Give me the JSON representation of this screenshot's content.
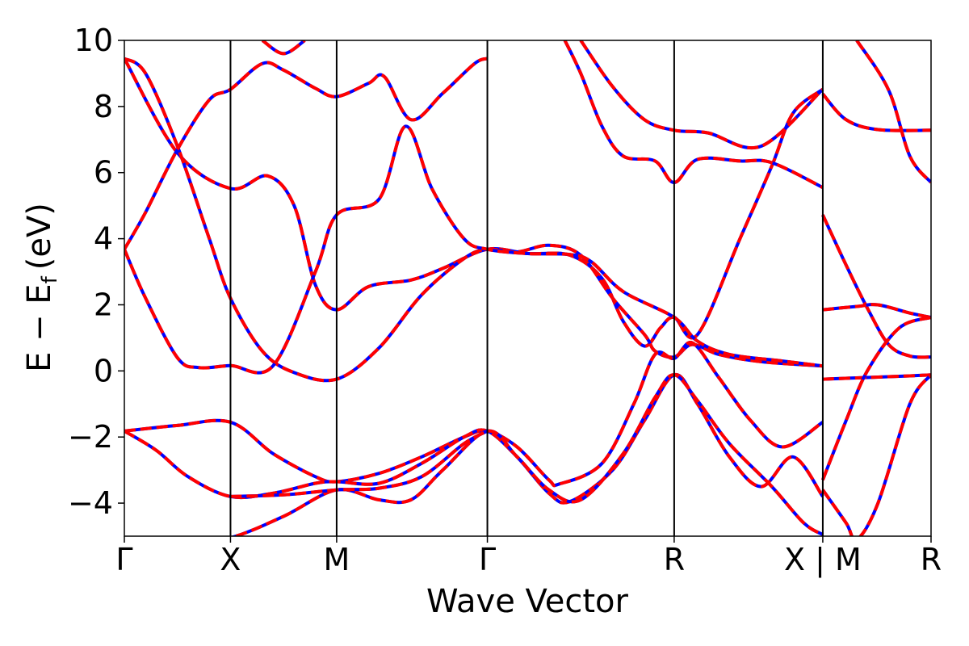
{
  "chart_data": {
    "type": "line",
    "xlabel": "Wave Vector",
    "ylabel": "E − E",
    "ylabel_subscript": "f",
    "ylabel_unit": "(eV)",
    "ylim": [
      -5,
      10
    ],
    "y_ticks": [
      -4,
      -2,
      0,
      2,
      4,
      6,
      8,
      10
    ],
    "xlim": [
      0,
      7.6
    ],
    "high_symmetry_points": [
      {
        "label": "Γ",
        "x": 0
      },
      {
        "label": "X",
        "x": 1.0
      },
      {
        "label": "M",
        "x": 2.0
      },
      {
        "label": "Γ",
        "x": 3.42
      },
      {
        "label": "R",
        "x": 5.18
      },
      {
        "label": "X",
        "x": 6.58
      },
      {
        "label": "M",
        "x": 6.58
      },
      {
        "label": "R",
        "x": 7.6
      }
    ],
    "kpath_break_label": "X | M",
    "grid": false,
    "series_styles": [
      {
        "color": "#0000ff",
        "style": "solid"
      },
      {
        "color": "#ff0000",
        "style": "dashed"
      }
    ],
    "bands": [
      [
        [
          0,
          9.45
        ],
        [
          0.5,
          6.6
        ],
        [
          1.0,
          5.52
        ],
        [
          1.35,
          5.9
        ],
        [
          1.6,
          5.0
        ],
        [
          1.8,
          2.6
        ],
        [
          2.0,
          1.85
        ],
        [
          2.3,
          2.55
        ],
        [
          2.7,
          2.75
        ],
        [
          3.0,
          3.1
        ],
        [
          3.42,
          3.68
        ],
        [
          3.8,
          3.55
        ],
        [
          4.2,
          3.5
        ],
        [
          4.5,
          2.8
        ],
        [
          4.7,
          1.5
        ],
        [
          4.9,
          0.75
        ],
        [
          5.05,
          1.3
        ],
        [
          5.18,
          1.62
        ],
        [
          5.4,
          1.1
        ],
        [
          5.8,
          4.0
        ],
        [
          6.1,
          6.2
        ],
        [
          6.3,
          7.8
        ],
        [
          6.58,
          8.52
        ]
      ],
      [
        [
          0,
          9.45
        ],
        [
          0.2,
          9.0
        ],
        [
          0.5,
          6.8
        ],
        [
          0.8,
          4.0
        ],
        [
          1.0,
          2.2
        ],
        [
          1.3,
          0.6
        ],
        [
          1.6,
          -0.05
        ],
        [
          2.0,
          -0.25
        ],
        [
          2.4,
          0.7
        ],
        [
          2.8,
          2.3
        ],
        [
          3.2,
          3.4
        ],
        [
          3.42,
          3.68
        ],
        [
          3.7,
          3.6
        ],
        [
          4.0,
          3.8
        ],
        [
          4.3,
          3.5
        ],
        [
          4.6,
          2.2
        ],
        [
          4.9,
          1.1
        ],
        [
          5.0,
          0.6
        ],
        [
          5.18,
          0.42
        ],
        [
          5.35,
          0.8
        ],
        [
          5.6,
          0.5
        ],
        [
          6.0,
          0.28
        ],
        [
          6.58,
          0.15
        ]
      ],
      [
        [
          0,
          3.68
        ],
        [
          0.2,
          4.8
        ],
        [
          0.5,
          6.7
        ],
        [
          0.8,
          8.2
        ],
        [
          1.0,
          8.52
        ],
        [
          1.3,
          9.3
        ],
        [
          1.5,
          9.1
        ],
        [
          1.8,
          8.55
        ],
        [
          2.0,
          8.3
        ],
        [
          2.3,
          8.7
        ],
        [
          2.45,
          8.9
        ],
        [
          2.7,
          7.6
        ],
        [
          3.0,
          8.4
        ],
        [
          3.3,
          9.3
        ],
        [
          3.42,
          9.45
        ]
      ],
      [
        [
          0,
          3.68
        ],
        [
          0.2,
          2.2
        ],
        [
          0.5,
          0.4
        ],
        [
          0.7,
          0.1
        ],
        [
          1.0,
          0.16
        ],
        [
          1.4,
          0.15
        ],
        [
          1.8,
          3.0
        ],
        [
          2.0,
          4.72
        ],
        [
          2.4,
          5.2
        ],
        [
          2.65,
          7.4
        ],
        [
          2.9,
          5.5
        ],
        [
          3.2,
          4.0
        ],
        [
          3.42,
          3.68
        ],
        [
          3.8,
          3.55
        ],
        [
          4.2,
          3.52
        ],
        [
          4.4,
          3.3
        ],
        [
          4.7,
          2.4
        ],
        [
          5.18,
          1.62
        ],
        [
          5.4,
          0.9
        ],
        [
          5.7,
          0.5
        ],
        [
          6.2,
          0.3
        ],
        [
          6.58,
          0.15
        ]
      ],
      [
        [
          0,
          -1.82
        ],
        [
          0.5,
          -1.65
        ],
        [
          1.0,
          -1.55
        ],
        [
          1.4,
          -2.5
        ],
        [
          1.8,
          -3.2
        ],
        [
          2.0,
          -3.35
        ],
        [
          2.4,
          -3.1
        ],
        [
          2.8,
          -2.6
        ],
        [
          3.2,
          -2.0
        ],
        [
          3.42,
          -1.82
        ],
        [
          3.7,
          -2.3
        ],
        [
          4.0,
          -3.3
        ],
        [
          4.1,
          -3.42
        ],
        [
          4.5,
          -2.8
        ],
        [
          4.8,
          -1.0
        ],
        [
          5.0,
          0.5
        ],
        [
          5.18,
          0.38
        ],
        [
          5.35,
          0.85
        ],
        [
          5.6,
          -0.2
        ],
        [
          5.9,
          -1.5
        ],
        [
          6.2,
          -2.3
        ],
        [
          6.58,
          -1.55
        ]
      ],
      [
        [
          0,
          -1.82
        ],
        [
          0.3,
          -2.4
        ],
        [
          0.6,
          -3.2
        ],
        [
          1.0,
          -3.8
        ],
        [
          1.4,
          -3.7
        ],
        [
          1.8,
          -3.4
        ],
        [
          2.0,
          -3.35
        ],
        [
          2.4,
          -3.4
        ],
        [
          2.8,
          -2.8
        ],
        [
          3.2,
          -2.0
        ],
        [
          3.42,
          -1.82
        ],
        [
          3.7,
          -2.6
        ],
        [
          4.0,
          -3.7
        ],
        [
          4.2,
          -3.95
        ],
        [
          4.6,
          -3.0
        ],
        [
          4.9,
          -1.5
        ],
        [
          5.18,
          -0.12
        ],
        [
          5.4,
          -1.0
        ],
        [
          5.7,
          -2.6
        ],
        [
          6.0,
          -3.5
        ],
        [
          6.3,
          -2.6
        ],
        [
          6.58,
          -3.8
        ]
      ],
      [
        [
          0,
          -5.4
        ],
        [
          0.5,
          -5.3
        ],
        [
          1.0,
          -5.05
        ],
        [
          1.5,
          -4.4
        ],
        [
          2.0,
          -3.6
        ],
        [
          2.4,
          -3.9
        ],
        [
          2.7,
          -3.9
        ],
        [
          3.0,
          -3.0
        ],
        [
          3.42,
          -1.82
        ],
        [
          3.7,
          -2.6
        ],
        [
          4.0,
          -3.6
        ],
        [
          4.3,
          -3.9
        ],
        [
          4.7,
          -2.5
        ],
        [
          5.0,
          -0.8
        ],
        [
          5.18,
          -0.12
        ],
        [
          5.4,
          -0.9
        ],
        [
          5.7,
          -2.2
        ],
        [
          6.1,
          -3.5
        ],
        [
          6.4,
          -4.6
        ],
        [
          6.58,
          -4.95
        ]
      ],
      [
        [
          1.0,
          -3.8
        ],
        [
          1.5,
          -3.75
        ],
        [
          2.0,
          -3.6
        ],
        [
          2.4,
          -3.55
        ],
        [
          2.8,
          -3.2
        ],
        [
          3.2,
          -2.2
        ],
        [
          3.42,
          -1.82
        ]
      ],
      [
        [
          4.15,
          10.0
        ],
        [
          4.3,
          9.0
        ],
        [
          4.5,
          7.4
        ],
        [
          4.7,
          6.5
        ],
        [
          5.0,
          6.35
        ],
        [
          5.18,
          5.7
        ],
        [
          5.4,
          6.4
        ],
        [
          5.8,
          6.35
        ],
        [
          6.1,
          6.3
        ],
        [
          6.58,
          5.55
        ]
      ],
      [
        [
          4.3,
          10.0
        ],
        [
          4.6,
          8.6
        ],
        [
          4.9,
          7.6
        ],
        [
          5.18,
          7.28
        ],
        [
          5.5,
          7.2
        ],
        [
          6.0,
          6.8
        ],
        [
          6.58,
          8.52
        ]
      ],
      [
        [
          1.3,
          10.0
        ],
        [
          1.5,
          9.6
        ],
        [
          1.7,
          10.0
        ]
      ],
      [
        [
          6.58,
          8.38
        ],
        [
          6.8,
          7.6
        ],
        [
          7.1,
          7.3
        ],
        [
          7.6,
          7.28
        ]
      ],
      [
        [
          6.58,
          4.72
        ],
        [
          6.8,
          3.2
        ],
        [
          7.0,
          1.9
        ],
        [
          7.2,
          0.8
        ],
        [
          7.4,
          0.45
        ],
        [
          7.6,
          0.42
        ]
      ],
      [
        [
          6.58,
          1.85
        ],
        [
          6.9,
          1.95
        ],
        [
          7.1,
          2.0
        ],
        [
          7.4,
          1.75
        ],
        [
          7.6,
          1.62
        ]
      ],
      [
        [
          6.58,
          -0.25
        ],
        [
          7.0,
          -0.2
        ],
        [
          7.4,
          -0.15
        ],
        [
          7.6,
          -0.12
        ]
      ],
      [
        [
          6.58,
          -3.3
        ],
        [
          6.8,
          -1.5
        ],
        [
          7.0,
          0.0
        ],
        [
          7.3,
          1.3
        ],
        [
          7.6,
          1.62
        ]
      ],
      [
        [
          6.58,
          -3.6
        ],
        [
          6.8,
          -4.6
        ],
        [
          6.9,
          -5.1
        ],
        [
          7.1,
          -4.0
        ],
        [
          7.4,
          -1.0
        ],
        [
          7.6,
          -0.12
        ]
      ],
      [
        [
          6.9,
          10.0
        ],
        [
          7.2,
          8.5
        ],
        [
          7.4,
          6.5
        ],
        [
          7.6,
          5.7
        ]
      ]
    ]
  }
}
